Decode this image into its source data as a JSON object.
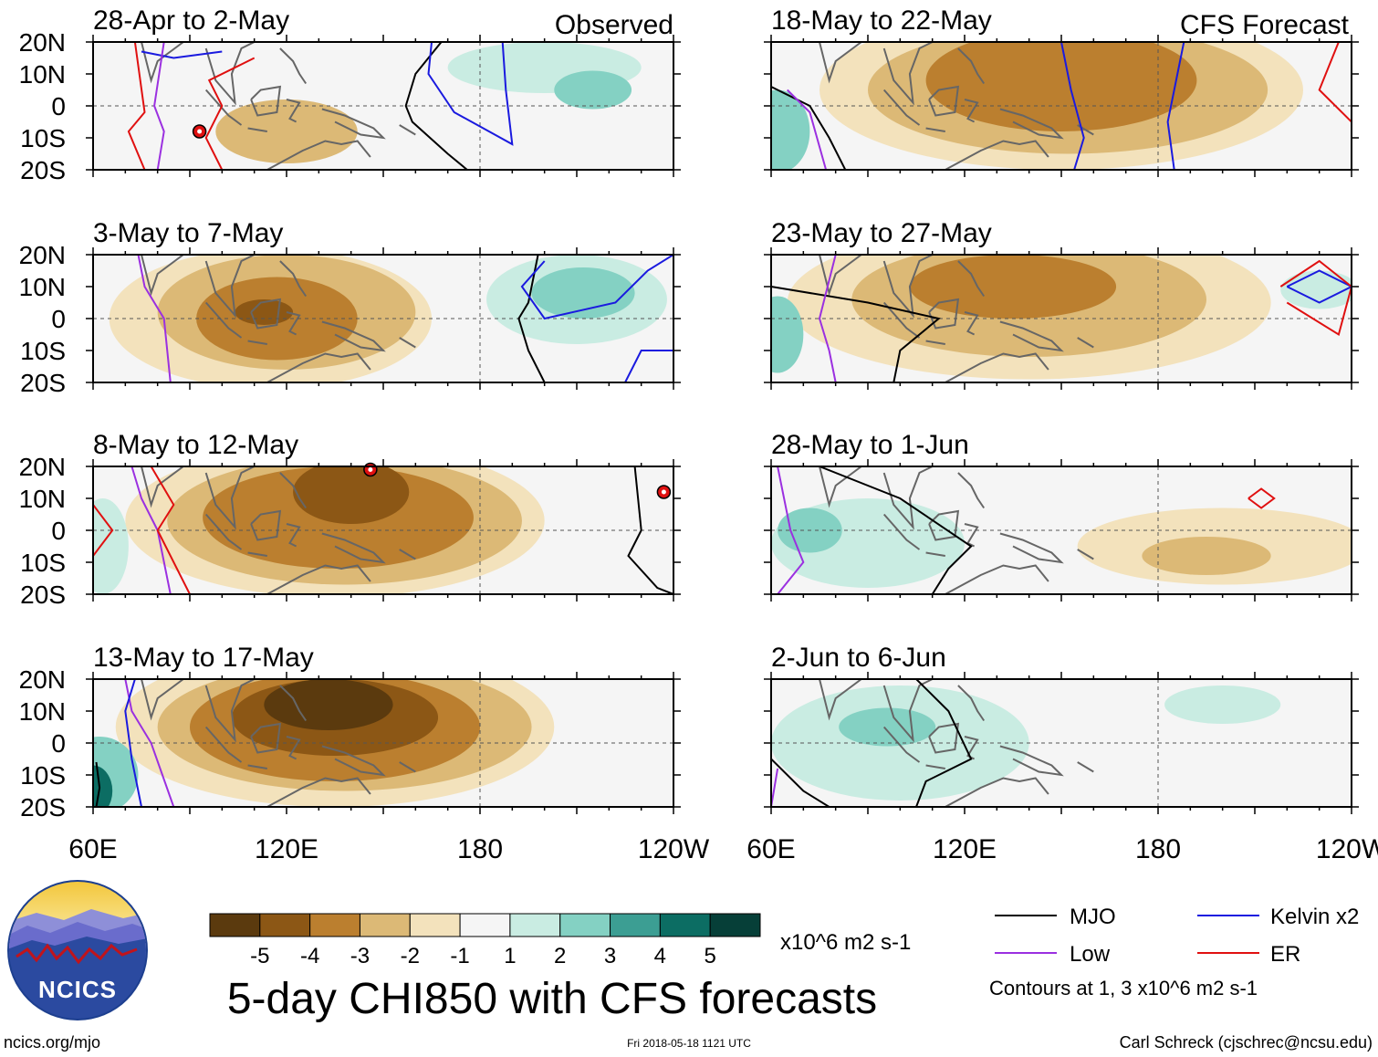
{
  "figure": {
    "title": "5-day CHI850 with CFS forecasts",
    "website": "ncics.org/mjo",
    "timestamp": "Fri 2018-05-18 1121 UTC",
    "author": "Carl Schreck (cjschrec@ncsu.edu)",
    "logo_text": "NCICS",
    "observed_label": "Observed",
    "forecast_label": "CFS Forecast"
  },
  "chart_data": {
    "type": "heatmap",
    "variable": "CHI850",
    "units": "x10^6 m2 s-1",
    "lon_range": [
      60,
      240
    ],
    "lat_range": [
      -20,
      20
    ],
    "xticks": [
      {
        "lon": 60,
        "label": "60E"
      },
      {
        "lon": 120,
        "label": "120E"
      },
      {
        "lon": 180,
        "label": "180"
      },
      {
        "lon": 240,
        "label": "120W"
      }
    ],
    "yticks": [
      {
        "lat": 20,
        "label": "20N"
      },
      {
        "lat": 10,
        "label": "10N"
      },
      {
        "lat": 0,
        "label": "0"
      },
      {
        "lat": -10,
        "label": "10S"
      },
      {
        "lat": -20,
        "label": "20S"
      }
    ],
    "colorbar": {
      "colors": [
        "#5b3a0e",
        "#8c5715",
        "#bb7f2f",
        "#dcb976",
        "#f3e2bc",
        "#f5f5f5",
        "#c9ece2",
        "#84d1c3",
        "#3c9e93",
        "#0c6d63",
        "#063f38"
      ],
      "labels": [
        "-5",
        "-4",
        "-3",
        "-2",
        "-1",
        "1",
        "2",
        "3",
        "4",
        "5"
      ]
    },
    "legend": [
      {
        "label": "MJO",
        "color": "#000000"
      },
      {
        "label": "Kelvin x2",
        "color": "#1a1adf"
      },
      {
        "label": "Low",
        "color": "#9b30e0"
      },
      {
        "label": "ER",
        "color": "#e01010"
      }
    ],
    "contour_note": "Contours at 1, 3 x10^6 m2 s-1",
    "panels": [
      {
        "title": "28-Apr to 2-May",
        "source": "observed",
        "blobs": [
          {
            "lon": 120,
            "lat": -8,
            "rx": 22,
            "ry": 10,
            "level": -2
          },
          {
            "lon": 200,
            "lat": 12,
            "rx": 30,
            "ry": 8,
            "level": 1
          },
          {
            "lon": 215,
            "lat": 5,
            "rx": 12,
            "ry": 6,
            "level": 2
          }
        ],
        "lines": [
          {
            "kind": "MJO",
            "lons": [
              168,
              160,
              157,
              159,
              170,
              176
            ],
            "lats": [
              20,
              10,
              0,
              -5,
              -15,
              -20
            ]
          },
          {
            "kind": "Kelvin",
            "lons": [
              165,
              164,
              172,
              190,
              188,
              187
            ],
            "lats": [
              20,
              10,
              -2,
              -12,
              5,
              20
            ]
          },
          {
            "kind": "Kelvin",
            "lons": [
              75,
              85,
              100
            ],
            "lats": [
              17,
              15,
              17
            ]
          },
          {
            "kind": "Low",
            "lons": [
              82,
              79,
              82,
              80
            ],
            "lats": [
              20,
              0,
              -8,
              -20
            ]
          },
          {
            "kind": "ER",
            "lons": [
              73,
              76,
              71,
              76
            ],
            "lats": [
              20,
              -2,
              -8,
              -20
            ]
          },
          {
            "kind": "ER",
            "lons": [
              110,
              96,
              100,
              95,
              100
            ],
            "lats": [
              15,
              8,
              0,
              -10,
              -20
            ]
          }
        ],
        "storms": [
          {
            "lon": 93,
            "lat": -8
          }
        ]
      },
      {
        "title": "3-May to 7-May",
        "source": "observed",
        "blobs": [
          {
            "lon": 115,
            "lat": 0,
            "rx": 50,
            "ry": 22,
            "level": -1
          },
          {
            "lon": 120,
            "lat": 2,
            "rx": 40,
            "ry": 18,
            "level": -2
          },
          {
            "lon": 117,
            "lat": 0,
            "rx": 25,
            "ry": 13,
            "level": -3
          },
          {
            "lon": 113,
            "lat": 2,
            "rx": 9,
            "ry": 4,
            "level": -4
          },
          {
            "lon": 210,
            "lat": 6,
            "rx": 28,
            "ry": 14,
            "level": 1
          },
          {
            "lon": 212,
            "lat": 8,
            "rx": 16,
            "ry": 8,
            "level": 2
          }
        ],
        "lines": [
          {
            "kind": "MJO",
            "lons": [
              198,
              195,
              192,
              195,
              200
            ],
            "lats": [
              20,
              5,
              0,
              -10,
              -20
            ]
          },
          {
            "kind": "Kelvin",
            "lons": [
              200,
              193,
              200,
              222,
              232,
              240
            ],
            "lats": [
              18,
              10,
              0,
              5,
              15,
              20
            ]
          },
          {
            "kind": "Kelvin",
            "lons": [
              225,
              230,
              240
            ],
            "lats": [
              -20,
              -10,
              -10
            ]
          },
          {
            "kind": "Low",
            "lons": [
              74,
              76,
              82,
              84
            ],
            "lats": [
              20,
              10,
              0,
              -20
            ]
          }
        ],
        "storms": []
      },
      {
        "title": "8-May to 12-May",
        "source": "observed",
        "blobs": [
          {
            "lon": 135,
            "lat": 3,
            "rx": 65,
            "ry": 24,
            "level": -1
          },
          {
            "lon": 138,
            "lat": 3,
            "rx": 55,
            "ry": 20,
            "level": -2
          },
          {
            "lon": 136,
            "lat": 4,
            "rx": 42,
            "ry": 16,
            "level": -3
          },
          {
            "lon": 140,
            "lat": 12,
            "rx": 18,
            "ry": 10,
            "level": -4
          },
          {
            "lon": 63,
            "lat": -5,
            "rx": 8,
            "ry": 15,
            "level": 1
          }
        ],
        "lines": [
          {
            "kind": "MJO",
            "lons": [
              228,
              230,
              226,
              235,
              240
            ],
            "lats": [
              20,
              0,
              -8,
              -18,
              -20
            ]
          },
          {
            "kind": "Low",
            "lons": [
              72,
              75,
              80,
              84
            ],
            "lats": [
              20,
              10,
              0,
              -20
            ]
          },
          {
            "kind": "ER",
            "lons": [
              78,
              85,
              80,
              90
            ],
            "lats": [
              20,
              8,
              0,
              -20
            ]
          },
          {
            "kind": "ER",
            "lons": [
              60,
              66,
              60
            ],
            "lats": [
              8,
              0,
              -8
            ]
          }
        ],
        "storms": [
          {
            "lon": 146,
            "lat": 19
          },
          {
            "lon": 237,
            "lat": 12
          }
        ]
      },
      {
        "title": "13-May to 17-May",
        "source": "observed",
        "blobs": [
          {
            "lon": 135,
            "lat": 5,
            "rx": 68,
            "ry": 25,
            "level": -1
          },
          {
            "lon": 138,
            "lat": 5,
            "rx": 58,
            "ry": 20,
            "level": -2
          },
          {
            "lon": 135,
            "lat": 5,
            "rx": 45,
            "ry": 17,
            "level": -3
          },
          {
            "lon": 135,
            "lat": 8,
            "rx": 32,
            "ry": 12,
            "level": -4
          },
          {
            "lon": 133,
            "lat": 12,
            "rx": 20,
            "ry": 8,
            "level": -5
          },
          {
            "lon": 62,
            "lat": -10,
            "rx": 12,
            "ry": 12,
            "level": 2
          },
          {
            "lon": 60,
            "lat": -15,
            "rx": 6,
            "ry": 8,
            "level": 4
          }
        ],
        "lines": [
          {
            "kind": "Low",
            "lons": [
              70,
              72,
              78,
              85
            ],
            "lats": [
              20,
              10,
              0,
              -20
            ]
          },
          {
            "kind": "Kelvin",
            "lons": [
              73,
              70,
              72,
              75
            ],
            "lats": [
              20,
              10,
              -5,
              -20
            ]
          },
          {
            "kind": "MJO",
            "lons": [
              61,
              62,
              61
            ],
            "lats": [
              -6,
              -14,
              -20
            ]
          }
        ],
        "storms": []
      },
      {
        "title": "18-May to 22-May",
        "source": "forecast",
        "blobs": [
          {
            "lon": 150,
            "lat": 5,
            "rx": 75,
            "ry": 25,
            "level": -1
          },
          {
            "lon": 152,
            "lat": 5,
            "rx": 62,
            "ry": 20,
            "level": -2
          },
          {
            "lon": 150,
            "lat": 8,
            "rx": 42,
            "ry": 16,
            "level": -3
          },
          {
            "lon": 62,
            "lat": -8,
            "rx": 10,
            "ry": 13,
            "level": 2
          }
        ],
        "lines": [
          {
            "kind": "MJO",
            "lons": [
              60,
              72,
              78,
              83
            ],
            "lats": [
              6,
              0,
              -10,
              -20
            ]
          },
          {
            "kind": "Kelvin",
            "lons": [
              150,
              153,
              157,
              154
            ],
            "lats": [
              20,
              5,
              -10,
              -20
            ]
          },
          {
            "kind": "Kelvin",
            "lons": [
              188,
              185,
              183,
              185
            ],
            "lats": [
              20,
              5,
              -5,
              -20
            ]
          },
          {
            "kind": "ER",
            "lons": [
              236,
              230,
              240
            ],
            "lats": [
              20,
              5,
              -5
            ]
          },
          {
            "kind": "Low",
            "lons": [
              65,
              72,
              77
            ],
            "lats": [
              5,
              -2,
              -20
            ]
          }
        ],
        "storms": []
      },
      {
        "title": "23-May to 27-May",
        "source": "forecast",
        "blobs": [
          {
            "lon": 140,
            "lat": 5,
            "rx": 75,
            "ry": 24,
            "level": -1
          },
          {
            "lon": 140,
            "lat": 6,
            "rx": 55,
            "ry": 18,
            "level": -2
          },
          {
            "lon": 135,
            "lat": 10,
            "rx": 32,
            "ry": 10,
            "level": -3
          },
          {
            "lon": 62,
            "lat": -5,
            "rx": 8,
            "ry": 12,
            "level": 2
          },
          {
            "lon": 230,
            "lat": 9,
            "rx": 12,
            "ry": 6,
            "level": 1
          }
        ],
        "lines": [
          {
            "kind": "MJO",
            "lons": [
              60,
              90,
              112,
              100,
              98
            ],
            "lats": [
              10,
              5,
              0,
              -10,
              -20
            ]
          },
          {
            "kind": "Kelvin",
            "lons": [
              220,
              230,
              240,
              230,
              220
            ],
            "lats": [
              10,
              15,
              10,
              5,
              10
            ]
          },
          {
            "kind": "ER",
            "lons": [
              218,
              230,
              240,
              236,
              220
            ],
            "lats": [
              10,
              18,
              10,
              -5,
              5
            ]
          },
          {
            "kind": "Low",
            "lons": [
              80,
              75,
              78,
              80
            ],
            "lats": [
              20,
              0,
              -10,
              -20
            ]
          }
        ],
        "storms": []
      },
      {
        "title": "28-May to 1-Jun",
        "source": "forecast",
        "blobs": [
          {
            "lon": 90,
            "lat": -4,
            "rx": 30,
            "ry": 14,
            "level": 1
          },
          {
            "lon": 72,
            "lat": 0,
            "rx": 10,
            "ry": 7,
            "level": 2
          },
          {
            "lon": 200,
            "lat": -5,
            "rx": 45,
            "ry": 12,
            "level": -1
          },
          {
            "lon": 195,
            "lat": -8,
            "rx": 20,
            "ry": 6,
            "level": -2
          }
        ],
        "lines": [
          {
            "kind": "MJO",
            "lons": [
              75,
              100,
              122,
              115,
              110
            ],
            "lats": [
              20,
              10,
              -5,
              -12,
              -20
            ]
          },
          {
            "kind": "Low",
            "lons": [
              62,
              66,
              70,
              62
            ],
            "lats": [
              20,
              0,
              -10,
              -20
            ]
          },
          {
            "kind": "ER",
            "lons": [
              208,
              212,
              216,
              212,
              208
            ],
            "lats": [
              10,
              13,
              10,
              7,
              10
            ]
          }
        ],
        "storms": []
      },
      {
        "title": "2-Jun to 6-Jun",
        "source": "forecast",
        "blobs": [
          {
            "lon": 100,
            "lat": 0,
            "rx": 40,
            "ry": 18,
            "level": 1
          },
          {
            "lon": 96,
            "lat": 5,
            "rx": 15,
            "ry": 6,
            "level": 2
          },
          {
            "lon": 200,
            "lat": 12,
            "rx": 18,
            "ry": 6,
            "level": 1
          }
        ],
        "lines": [
          {
            "kind": "MJO",
            "lons": [
              105,
              115,
              122,
              108,
              105
            ],
            "lats": [
              20,
              10,
              -5,
              -12,
              -20
            ]
          },
          {
            "kind": "MJO",
            "lons": [
              60,
              70,
              78
            ],
            "lats": [
              -5,
              -15,
              -20
            ]
          },
          {
            "kind": "Low",
            "lons": [
              62,
              60
            ],
            "lats": [
              -8,
              -20
            ]
          }
        ],
        "storms": []
      }
    ]
  }
}
